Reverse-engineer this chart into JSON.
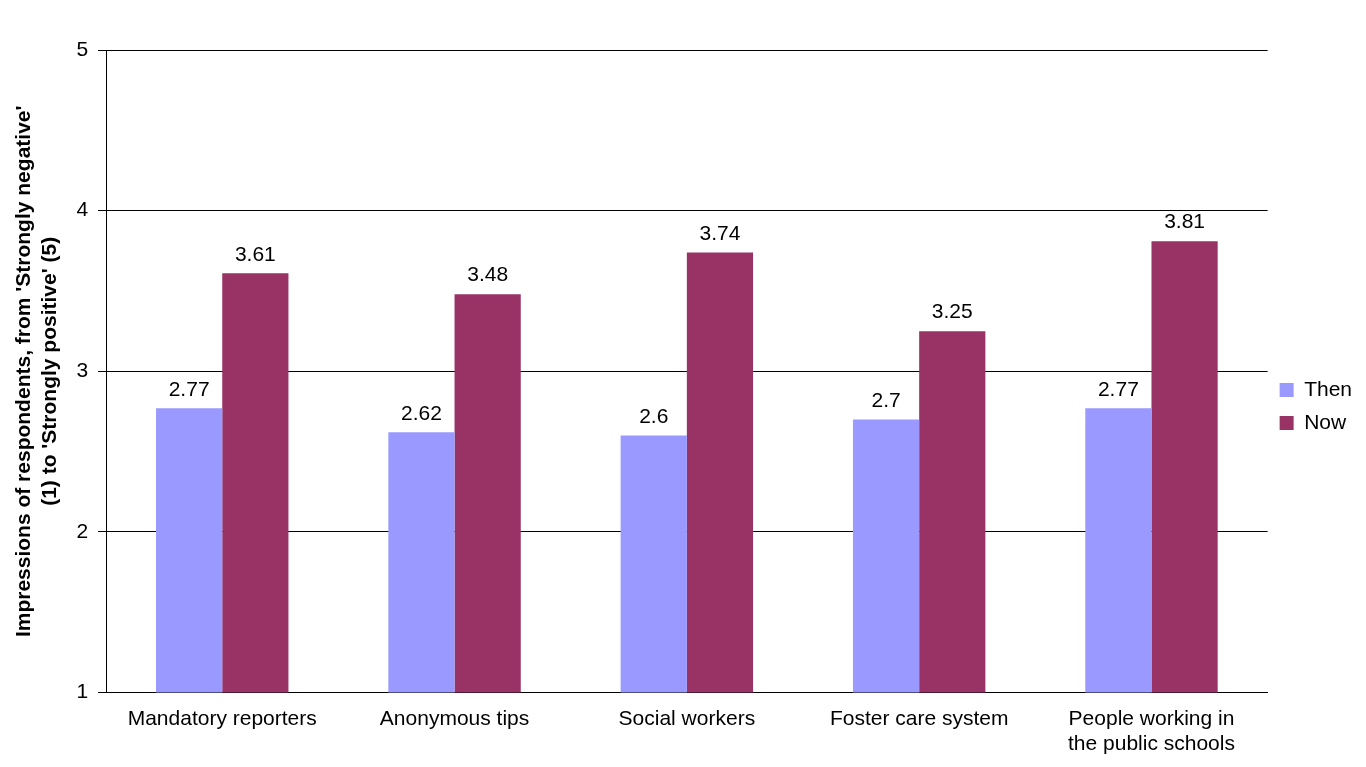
{
  "chart_data": {
    "type": "bar",
    "ylabel": "Impressions of respondents, from 'Strongly negative' (1) to 'Strongly positive' (5)",
    "categories": [
      "Mandatory reporters",
      "Anonymous tips",
      "Social workers",
      "Foster care system",
      "People working in the public schools"
    ],
    "series": [
      {
        "name": "Then",
        "color": "#9999ff",
        "values": [
          2.77,
          2.62,
          2.6,
          2.7,
          2.77
        ]
      },
      {
        "name": "Now",
        "color": "#993366",
        "values": [
          3.61,
          3.48,
          3.74,
          3.25,
          3.81
        ]
      }
    ],
    "ylim": [
      1,
      5
    ],
    "yticks": [
      1,
      2,
      3,
      4,
      5
    ],
    "grid": "y",
    "legend": "right",
    "data_labels": true
  }
}
